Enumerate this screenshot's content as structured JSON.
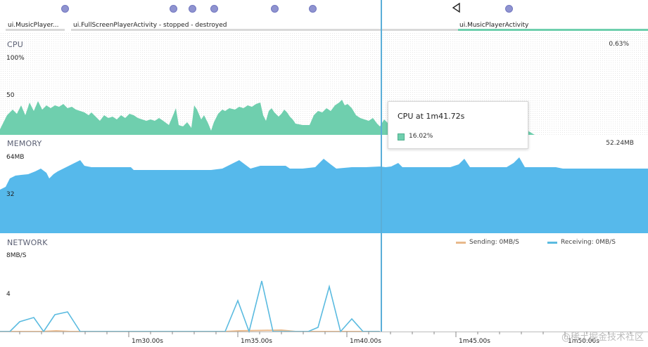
{
  "events": {
    "dots": [
      "touch-event",
      "touch-event",
      "touch-event",
      "touch-event",
      "touch-event",
      "touch-event",
      "touch-event",
      "touch-event"
    ],
    "back_icon": "back-arrow-icon"
  },
  "activities": [
    {
      "label": "ui.MusicPlayer...",
      "state": "inactive"
    },
    {
      "label": "ui.FullScreenPlayerActivity - stopped - destroyed",
      "state": "inactive"
    },
    {
      "label": "ui.MusicPlayerActivity",
      "state": "active"
    }
  ],
  "cpu": {
    "title": "CPU",
    "current": "0.63%",
    "ticks": [
      "100%",
      "50"
    ],
    "color": "#6fcfae"
  },
  "memory": {
    "title": "MEMORY",
    "current": "52.24MB",
    "ticks": [
      "64MB",
      "32"
    ],
    "color": "#56b9eb"
  },
  "network": {
    "title": "NETWORK",
    "ticks": [
      "8MB/S",
      "4"
    ],
    "legend": {
      "sending": "Sending: 0MB/S",
      "receiving": "Receiving: 0MB/S"
    },
    "sending_color": "#e8b98c",
    "receiving_color": "#5bbbe0"
  },
  "time_axis": [
    "1m30.00s",
    "1m35.00s",
    "1m40.00s",
    "1m45.00s",
    "1m50.00s"
  ],
  "tooltip": {
    "title": "CPU at 1m41.72s",
    "value": "16.02%"
  },
  "watermark": "@稀土掘金技术社区"
}
